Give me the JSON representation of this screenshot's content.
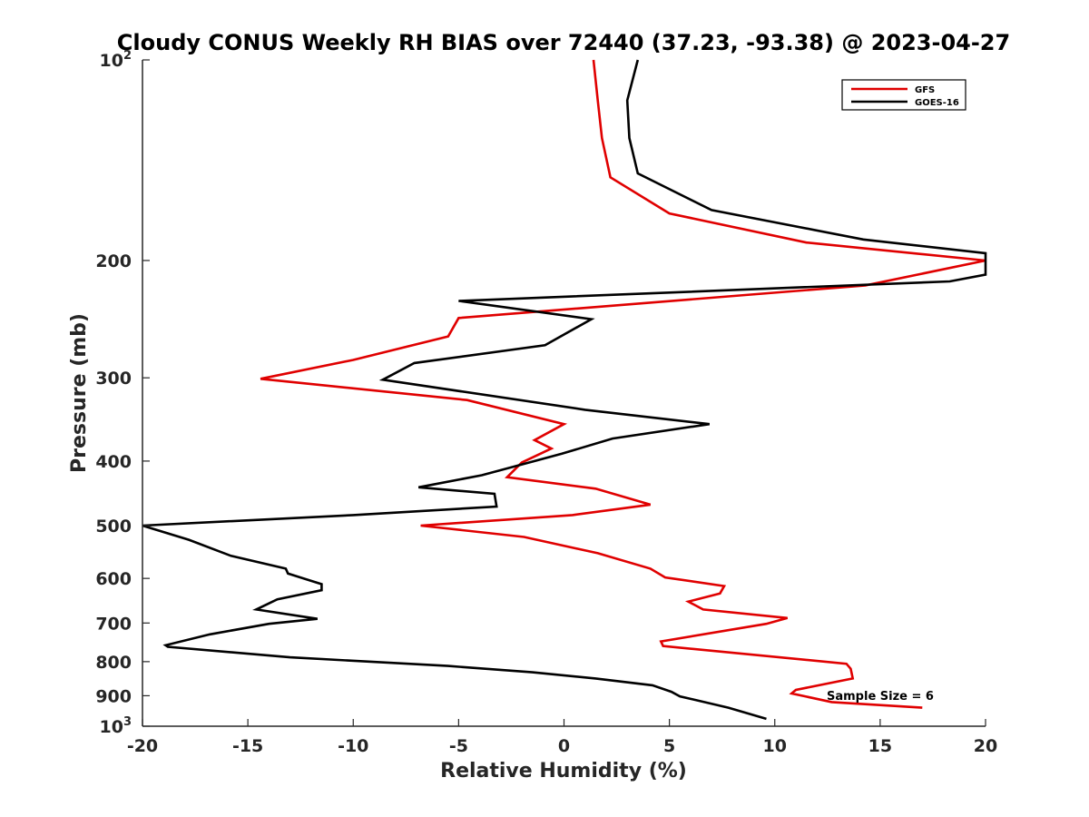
{
  "chart_data": {
    "type": "line",
    "title": "Cloudy CONUS Weekly RH BIAS over 72440 (37.23, -93.38) @ 2023-04-27",
    "xlabel": "Relative Humidity (%)",
    "ylabel": "Pressure (mb)",
    "xlim": [
      -20,
      20
    ],
    "ylim": [
      1000,
      100
    ],
    "y_scale": "log",
    "y_reversed": true,
    "grid": false,
    "legend_position": "top-right",
    "annotation": "Sample Size = 6",
    "x_ticks": [
      "-20",
      "-15",
      "-10",
      "-5",
      "0",
      "5",
      "10",
      "15",
      "20"
    ],
    "y_ticks": [
      {
        "value": 100,
        "base": "10",
        "exp": "2"
      },
      {
        "value": 200,
        "label": "200"
      },
      {
        "value": 300,
        "label": "300"
      },
      {
        "value": 400,
        "label": "400"
      },
      {
        "value": 500,
        "label": "500"
      },
      {
        "value": 600,
        "label": "600"
      },
      {
        "value": 700,
        "label": "700"
      },
      {
        "value": 800,
        "label": "800"
      },
      {
        "value": 900,
        "label": "900"
      },
      {
        "value": 1000,
        "base": "10",
        "exp": "3"
      }
    ],
    "series": [
      {
        "name": "GFS",
        "color": "#e00000",
        "points": [
          [
            1.4,
            100
          ],
          [
            1.6,
            115
          ],
          [
            1.8,
            131
          ],
          [
            2.2,
            150
          ],
          [
            5.0,
            170
          ],
          [
            11.5,
            188
          ],
          [
            20.0,
            200
          ],
          [
            14.3,
            218
          ],
          [
            -5.0,
            244
          ],
          [
            -5.5,
            260
          ],
          [
            -10.0,
            282
          ],
          [
            -14.4,
            301
          ],
          [
            -4.6,
            324
          ],
          [
            0.0,
            352
          ],
          [
            -1.4,
            372
          ],
          [
            -0.6,
            383
          ],
          [
            -2.0,
            402
          ],
          [
            -2.7,
            423
          ],
          [
            1.5,
            440
          ],
          [
            4.1,
            465
          ],
          [
            0.4,
            482
          ],
          [
            -6.8,
            500
          ],
          [
            -1.9,
            520
          ],
          [
            1.6,
            550
          ],
          [
            4.1,
            580
          ],
          [
            4.8,
            598
          ],
          [
            7.6,
            616
          ],
          [
            7.4,
            632
          ],
          [
            5.9,
            650
          ],
          [
            6.6,
            668
          ],
          [
            10.6,
            688
          ],
          [
            9.6,
            702
          ],
          [
            4.6,
            746
          ],
          [
            4.7,
            758
          ],
          [
            13.4,
            806
          ],
          [
            13.6,
            820
          ],
          [
            13.7,
            848
          ],
          [
            11.0,
            882
          ],
          [
            10.8,
            893
          ],
          [
            12.7,
            920
          ],
          [
            17.0,
            938
          ]
        ]
      },
      {
        "name": "GOES-16",
        "color": "#000000",
        "points": [
          [
            3.5,
            100
          ],
          [
            3.0,
            115
          ],
          [
            3.1,
            131
          ],
          [
            3.5,
            148
          ],
          [
            7.0,
            168
          ],
          [
            14.2,
            186
          ],
          [
            20.0,
            195
          ],
          [
            20.0,
            210
          ],
          [
            18.3,
            215
          ],
          [
            -5.0,
            230
          ],
          [
            1.3,
            245
          ],
          [
            -0.9,
            268
          ],
          [
            -7.1,
            285
          ],
          [
            -8.6,
            302
          ],
          [
            1.0,
            335
          ],
          [
            6.9,
            352
          ],
          [
            2.3,
            370
          ],
          [
            -0.1,
            390
          ],
          [
            -3.9,
            420
          ],
          [
            -6.9,
            438
          ],
          [
            -3.3,
            448
          ],
          [
            -3.2,
            468
          ],
          [
            -10.0,
            482
          ],
          [
            -20.0,
            500
          ],
          [
            -17.8,
            525
          ],
          [
            -15.8,
            555
          ],
          [
            -13.2,
            580
          ],
          [
            -13.1,
            590
          ],
          [
            -11.5,
            612
          ],
          [
            -11.5,
            625
          ],
          [
            -13.6,
            645
          ],
          [
            -14.6,
            668
          ],
          [
            -11.7,
            690
          ],
          [
            -14.0,
            702
          ],
          [
            -16.8,
            728
          ],
          [
            -18.9,
            756
          ],
          [
            -18.8,
            760
          ],
          [
            -13.0,
            788
          ],
          [
            -5.5,
            812
          ],
          [
            -1.5,
            830
          ],
          [
            1.5,
            848
          ],
          [
            4.2,
            868
          ],
          [
            5.1,
            888
          ],
          [
            5.5,
            902
          ],
          [
            7.8,
            938
          ],
          [
            9.6,
            975
          ]
        ]
      }
    ]
  }
}
